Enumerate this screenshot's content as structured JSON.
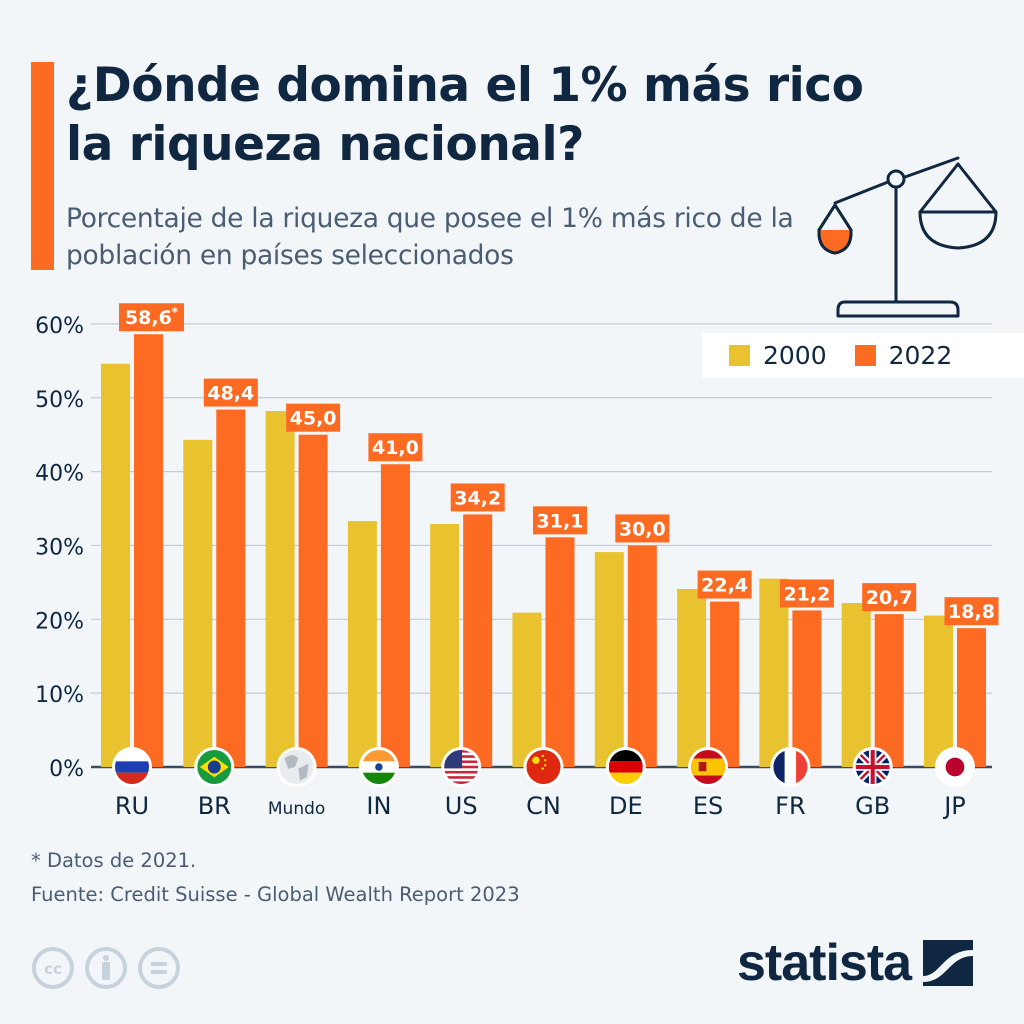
{
  "header": {
    "title": "¿Dónde domina el 1% más rico la riqueza nacional?",
    "subtitle": "Porcentaje de la riqueza que posee el 1% más rico de la población en países seleccionados"
  },
  "colors": {
    "accent": "#fc6b21",
    "series_2000": "#e8c22f",
    "series_2022": "#fc6b21",
    "text_dark": "#0f2741",
    "text_muted": "#4a5d72",
    "gridline": "#c3ccd6",
    "background": "#f3f6f9"
  },
  "legend": {
    "items": [
      {
        "label": "2000",
        "color": "#e8c22f"
      },
      {
        "label": "2022",
        "color": "#fc6b21"
      }
    ]
  },
  "chart_data": {
    "type": "bar",
    "title": "¿Dónde domina el 1% más rico la riqueza nacional?",
    "subtitle": "Porcentaje de la riqueza que posee el 1% más rico de la población en países seleccionados",
    "xlabel": "",
    "ylabel": "",
    "ylim": [
      0,
      60
    ],
    "yticks": [
      0,
      10,
      20,
      30,
      40,
      50,
      60
    ],
    "ytick_labels": [
      "0%",
      "10%",
      "20%",
      "30%",
      "40%",
      "50%",
      "60%"
    ],
    "grid": true,
    "legend_position": "top-right",
    "categories": [
      "RU",
      "BR",
      "Mundo",
      "IN",
      "US",
      "CN",
      "DE",
      "ES",
      "FR",
      "GB",
      "JP"
    ],
    "category_flags": [
      "flag-russia",
      "flag-brazil",
      "globe-world",
      "flag-india",
      "flag-usa",
      "flag-china",
      "flag-germany",
      "flag-spain",
      "flag-france",
      "flag-uk",
      "flag-japan"
    ],
    "series": [
      {
        "name": "2000",
        "color": "#e8c22f",
        "values": [
          54.6,
          44.3,
          48.2,
          33.3,
          32.9,
          20.9,
          29.1,
          24.1,
          25.5,
          22.2,
          20.5
        ],
        "labeled": false
      },
      {
        "name": "2022",
        "color": "#fc6b21",
        "values": [
          58.6,
          48.4,
          45.0,
          41.0,
          34.2,
          31.1,
          30.0,
          22.4,
          21.2,
          20.7,
          18.8
        ],
        "labeled": true,
        "data_labels": [
          "58,6*",
          "48,4",
          "45,0",
          "41,0",
          "34,2",
          "31,1",
          "30,0",
          "22,4",
          "21,2",
          "20,7",
          "18,8"
        ]
      }
    ],
    "annotations": [
      "* Datos de 2021."
    ]
  },
  "footer": {
    "footnote": "* Datos de 2021.",
    "source": "Fuente: Credit Suisse - Global Wealth Report 2023",
    "license_icons": [
      "creative-commons-icon",
      "attribution-icon",
      "no-derivatives-icon"
    ],
    "logo_text": "statista"
  }
}
